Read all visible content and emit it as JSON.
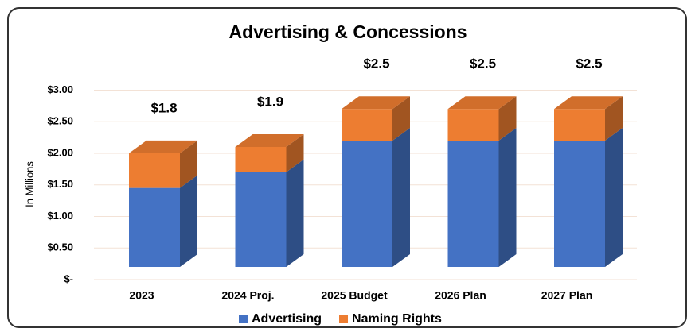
{
  "chart_data": {
    "type": "bar3d-stacked",
    "title": "Advertising & Concessions",
    "y_axis_label": "In Millions",
    "categories": [
      "2023",
      "2024 Proj.",
      "2025 Budget",
      "2026 Plan",
      "2027 Plan"
    ],
    "series": [
      {
        "name": "Advertising",
        "color": "#4472c4",
        "values": [
          1.25,
          1.5,
          2.0,
          2.0,
          2.0
        ]
      },
      {
        "name": "Naming Rights",
        "color": "#ed7d31",
        "values": [
          0.55,
          0.4,
          0.5,
          0.5,
          0.5
        ]
      }
    ],
    "totals": [
      1.8,
      1.9,
      2.5,
      2.5,
      2.5
    ],
    "total_labels": [
      "$1.8",
      "$1.9",
      "$2.5",
      "$2.5",
      "$2.5"
    ],
    "ylim": [
      0,
      3
    ],
    "yticks": [
      {
        "value": 0,
        "label": "$-"
      },
      {
        "value": 0.5,
        "label": "$0.50"
      },
      {
        "value": 1,
        "label": "$1.00"
      },
      {
        "value": 1.5,
        "label": "$1.50"
      },
      {
        "value": 2,
        "label": "$2.00"
      },
      {
        "value": 2.5,
        "label": "$2.50"
      },
      {
        "value": 3,
        "label": "$3.00"
      }
    ],
    "grid": true,
    "legend": "bottom"
  }
}
